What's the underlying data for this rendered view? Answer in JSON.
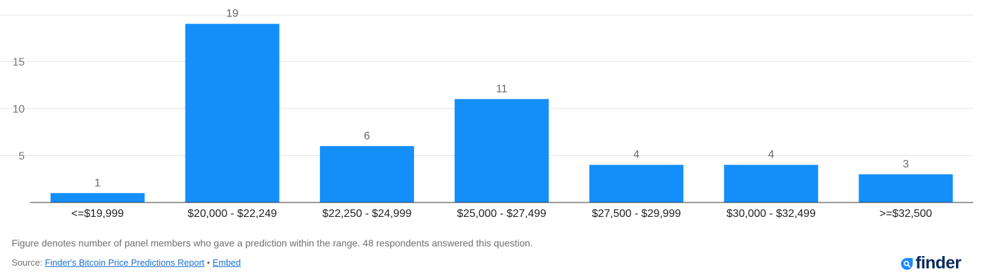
{
  "chart_data": {
    "type": "bar",
    "title": "",
    "xlabel": "",
    "ylabel": "",
    "categories": [
      "<=$19,999",
      "$20,000 - $22,249",
      "$22,250 - $24,999",
      "$25,000 - $27,499",
      "$27,500 - $29,999",
      "$30,000 - $32,499",
      ">=$32,500"
    ],
    "values": [
      1,
      19,
      6,
      11,
      4,
      4,
      3
    ],
    "value_labels": [
      "1",
      "19",
      "6",
      "11",
      "4",
      "4",
      "3"
    ],
    "yticks": [
      5,
      10,
      15
    ],
    "ytick_labels": [
      "5",
      "10",
      "15"
    ],
    "ylim": [
      0,
      20
    ],
    "grid": true,
    "legend": "none",
    "bar_color": "#148ffa"
  },
  "footer": {
    "note": "Figure denotes number of panel members who gave a prediction within the range. 48 respondents answered this question.",
    "source_prefix": "Source: ",
    "source_link": "Finder's Bitcoin Price Predictions Report",
    "separator": " • ",
    "embed_link": "Embed"
  },
  "logo": {
    "text": "finder",
    "icon": "finder-magnifier-icon",
    "color": "#0a2a5c",
    "icon_color": "#1a8cff"
  }
}
